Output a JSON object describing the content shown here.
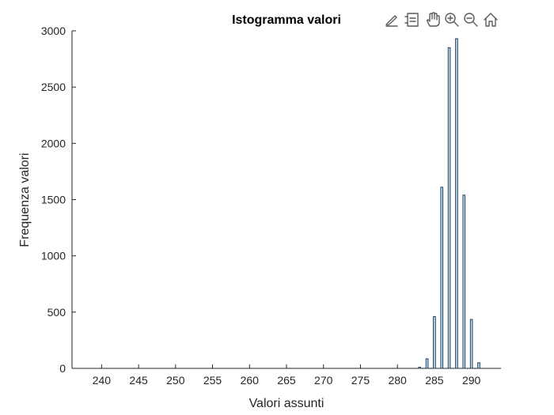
{
  "toolbar": {
    "items": [
      {
        "name": "data-tips",
        "icon": "brush-pen-icon"
      },
      {
        "name": "legend",
        "icon": "data-cursor-icon"
      },
      {
        "name": "pan",
        "icon": "hand-icon"
      },
      {
        "name": "zoom-in",
        "icon": "zoom-in-icon"
      },
      {
        "name": "zoom-out",
        "icon": "zoom-out-icon"
      },
      {
        "name": "restore-view",
        "icon": "home-icon"
      }
    ]
  },
  "chart_data": {
    "type": "bar",
    "title": "Istogramma valori",
    "xlabel": "Valori assunti",
    "ylabel": "Frequenza valori",
    "xlim": [
      236,
      294
    ],
    "ylim": [
      0,
      3000
    ],
    "xticks": [
      240,
      245,
      250,
      255,
      260,
      265,
      270,
      275,
      280,
      285,
      290
    ],
    "yticks": [
      0,
      500,
      1000,
      1500,
      2000,
      2500,
      3000
    ],
    "grid": false,
    "bar_color": "#1f3b5c",
    "x": [
      283,
      284,
      285,
      286,
      287,
      288,
      289,
      290,
      291
    ],
    "values": [
      10,
      85,
      460,
      1610,
      2850,
      2930,
      1540,
      435,
      50
    ]
  }
}
